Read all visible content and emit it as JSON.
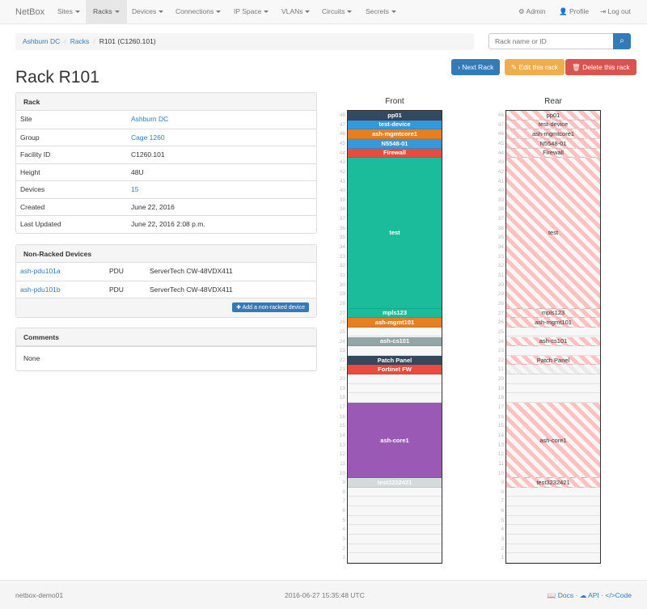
{
  "nav": {
    "brand": "NetBox",
    "items": [
      "Sites",
      "Racks",
      "Devices",
      "Connections",
      "IP Space",
      "VLANs",
      "Circuits",
      "Secrets"
    ],
    "active": "Racks",
    "admin": "Admin",
    "profile": "Profile",
    "logout": "Log out"
  },
  "breadcrumb": [
    "Ashburn DC",
    "Racks",
    "R101 (C1260.101)"
  ],
  "search": {
    "placeholder": "Rack name or ID"
  },
  "buttons": {
    "next": "Next Rack",
    "edit": "Edit this rack",
    "delete": "Delete this rack"
  },
  "title": "Rack R101",
  "rack_panel": {
    "heading": "Rack",
    "rows": [
      {
        "label": "Site",
        "value": "Ashburn DC",
        "link": true
      },
      {
        "label": "Group",
        "value": "Cage 1260",
        "link": true
      },
      {
        "label": "Facility ID",
        "value": "C1260.101"
      },
      {
        "label": "Height",
        "value": "48U"
      },
      {
        "label": "Devices",
        "value": "15",
        "link": true
      },
      {
        "label": "Created",
        "value": "June 22, 2016"
      },
      {
        "label": "Last Updated",
        "value": "June 22, 2016 2:08 p.m."
      }
    ]
  },
  "nonracked": {
    "heading": "Non-Racked Devices",
    "rows": [
      {
        "name": "ash-pdu101a",
        "type": "PDU",
        "model": "ServerTech CW-48VDX411"
      },
      {
        "name": "ash-pdu101b",
        "type": "PDU",
        "model": "ServerTech CW-48VDX411"
      }
    ],
    "add": "Add a non-racked device"
  },
  "comments": {
    "heading": "Comments",
    "body": "None"
  },
  "rack": {
    "height": 48,
    "front_label": "Front",
    "rear_label": "Rear",
    "devices": [
      {
        "name": "pp01",
        "top": 48,
        "size": 1,
        "color": "#34495e",
        "rear": true
      },
      {
        "name": "test-device",
        "top": 47,
        "size": 1,
        "color": "#3498db",
        "rear": true
      },
      {
        "name": "ash-mgmtcore1",
        "top": 46,
        "size": 1,
        "color": "#e67e22",
        "rear": true
      },
      {
        "name": "N5548-01",
        "top": 45,
        "size": 1,
        "color": "#3498db",
        "rear": true
      },
      {
        "name": "Firewall",
        "top": 44,
        "size": 1,
        "color": "#e74c3c",
        "rear": true
      },
      {
        "name": "test",
        "top": 43,
        "size": 16,
        "color": "#1abc9c",
        "rear": true
      },
      {
        "name": "mpls123",
        "top": 27,
        "size": 1,
        "color": "#1abc9c",
        "rear": true
      },
      {
        "name": "ash-mgmt101",
        "top": 26,
        "size": 1,
        "color": "#e67e22",
        "rear": true
      },
      {
        "name": "ash-cs101",
        "top": 24,
        "size": 1,
        "color": "#95a5a6",
        "rear": true
      },
      {
        "name": "Patch Panel",
        "top": 22,
        "size": 1,
        "color": "#34495e",
        "rear": true
      },
      {
        "name": "Fortinet FW",
        "top": 21,
        "size": 1,
        "color": "#e74c3c",
        "rear": false
      },
      {
        "name": "ash-core1",
        "top": 17,
        "size": 8,
        "color": "#9b59b6",
        "rear": true
      },
      {
        "name": "test3232421",
        "top": 9,
        "size": 1,
        "color": "#d5dbdb",
        "rear": true
      }
    ]
  },
  "footer": {
    "host": "netbox-demo01",
    "time": "2016-06-27 15:35:48 UTC",
    "docs": "Docs",
    "api": "API",
    "code": "Code"
  },
  "colors": {
    "primary": "#337ab7",
    "warning": "#f0ad4e",
    "danger": "#d9534f"
  }
}
